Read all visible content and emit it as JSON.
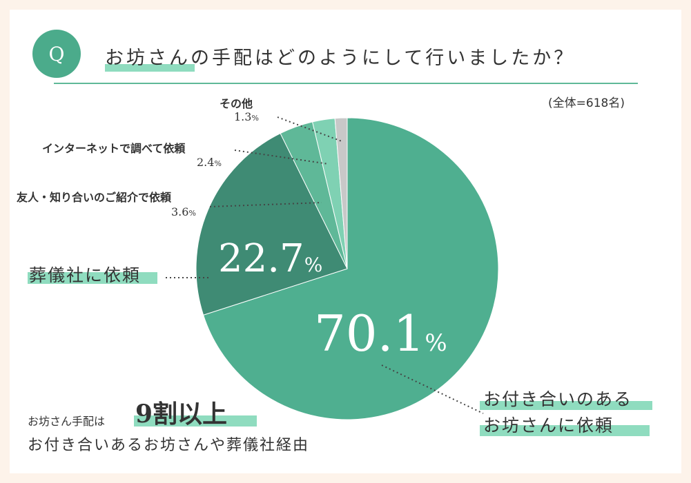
{
  "question": {
    "badge": "Q",
    "title": "お坊さんの手配はどのようにして行いましたか？",
    "total": "(全体=618名)"
  },
  "chart_data": {
    "type": "pie",
    "start": "12 o'clock, clockwise",
    "slices": [
      {
        "label": "お付き合いのあるお坊さんに依頼",
        "label_lines": [
          "お付き合いのある",
          "お坊さんに依頼"
        ],
        "value": 70.1,
        "display": "70.1",
        "color": "#4faf90"
      },
      {
        "label": "葬儀社に依頼",
        "value": 22.7,
        "display": "22.7",
        "color": "#3f8b74"
      },
      {
        "label": "友人・知り合いのご紹介で依頼",
        "value": 3.6,
        "display": "3.6",
        "color": "#5fb898"
      },
      {
        "label": "インターネットで調べて依頼",
        "value": 2.4,
        "display": "2.4",
        "color": "#7fd1b3"
      },
      {
        "label": "その他",
        "value": 1.3,
        "display": "1.3",
        "color": "#c8c8c8"
      }
    ],
    "unit": "%"
  },
  "footer": {
    "line1": "お坊さん手配は",
    "emphasis": "9割以上",
    "line2": "お付き合いあるお坊さんや葬儀社経由"
  }
}
